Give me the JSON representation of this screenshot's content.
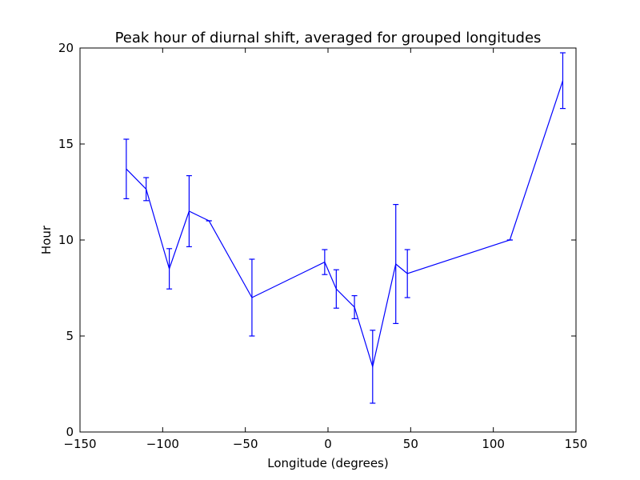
{
  "chart_data": {
    "type": "line",
    "title": "Peak hour of diurnal shift, averaged for grouped longitudes",
    "xlabel": "Longitude (degrees)",
    "ylabel": "Hour",
    "xlim": [
      -150,
      150
    ],
    "ylim": [
      0,
      20
    ],
    "xticks": [
      -150,
      -100,
      -50,
      0,
      50,
      100,
      150
    ],
    "yticks": [
      0,
      5,
      10,
      15,
      20
    ],
    "grid": false,
    "color": "#0000ff",
    "series": [
      {
        "points": [
          {
            "x": -122,
            "y": 13.7,
            "yerr": 1.55
          },
          {
            "x": -110,
            "y": 12.65,
            "yerr": 0.6
          },
          {
            "x": -96,
            "y": 8.5,
            "yerr": 1.05
          },
          {
            "x": -84,
            "y": 11.5,
            "yerr": 1.85
          },
          {
            "x": -72,
            "y": 11.0,
            "yerr": 0.0
          },
          {
            "x": -46,
            "y": 7.0,
            "yerr": 2.0
          },
          {
            "x": -2,
            "y": 8.85,
            "yerr": 0.65
          },
          {
            "x": 5,
            "y": 7.45,
            "yerr": 1.0
          },
          {
            "x": 16,
            "y": 6.5,
            "yerr": 0.6
          },
          {
            "x": 27,
            "y": 3.4,
            "yerr": 1.9
          },
          {
            "x": 41,
            "y": 8.75,
            "yerr": 3.1
          },
          {
            "x": 48,
            "y": 8.25,
            "yerr": 1.25
          },
          {
            "x": 110,
            "y": 10.0,
            "yerr": 0.0
          },
          {
            "x": 142,
            "y": 18.3,
            "yerr": 1.45
          }
        ]
      }
    ]
  }
}
